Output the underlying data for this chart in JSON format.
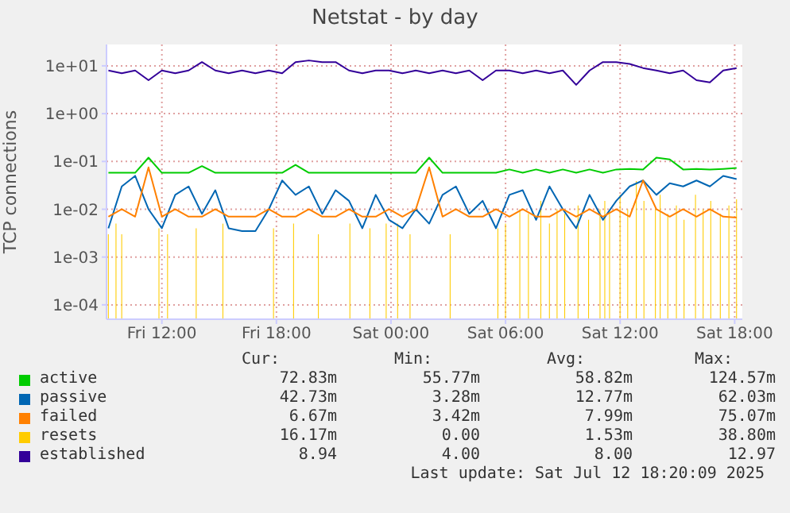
{
  "chart_data": {
    "type": "line",
    "title": "Netstat - by day",
    "ylabel": "TCP connections",
    "log": "y",
    "grid": true,
    "legend": "bottom",
    "line_style": "solid",
    "marker": "none",
    "xlim": [
      "2025-07-11T09:06",
      "2025-07-12T18:24"
    ],
    "xticks": [
      {
        "value": "2025-07-11T12:00",
        "label": "Fri 12:00"
      },
      {
        "value": "2025-07-11T18:00",
        "label": "Fri 18:00"
      },
      {
        "value": "2025-07-12T00:00",
        "label": "Sat 00:00"
      },
      {
        "value": "2025-07-12T06:00",
        "label": "Sat 06:00"
      },
      {
        "value": "2025-07-12T12:00",
        "label": "Sat 12:00"
      },
      {
        "value": "2025-07-12T18:00",
        "label": "Sat 18:00"
      }
    ],
    "ylim": [
      5e-05,
      28
    ],
    "yticks": [
      {
        "value": 0.0001,
        "label": "1e-04"
      },
      {
        "value": 0.001,
        "label": "1e-03"
      },
      {
        "value": 0.01,
        "label": "1e-02"
      },
      {
        "value": 0.1,
        "label": "1e-01"
      },
      {
        "value": 1,
        "label": "1e+00"
      },
      {
        "value": 10,
        "label": "1e+01"
      }
    ],
    "x": [
      "2025-07-11T09:12",
      "2025-07-11T09:54",
      "2025-07-11T10:36",
      "2025-07-11T11:18",
      "2025-07-11T12:00",
      "2025-07-11T12:42",
      "2025-07-11T13:24",
      "2025-07-11T14:06",
      "2025-07-11T14:48",
      "2025-07-11T15:30",
      "2025-07-11T16:12",
      "2025-07-11T16:54",
      "2025-07-11T17:36",
      "2025-07-11T18:18",
      "2025-07-11T19:00",
      "2025-07-11T19:42",
      "2025-07-11T20:24",
      "2025-07-11T21:06",
      "2025-07-11T21:48",
      "2025-07-11T22:30",
      "2025-07-11T23:12",
      "2025-07-11T23:54",
      "2025-07-12T00:36",
      "2025-07-12T01:18",
      "2025-07-12T02:00",
      "2025-07-12T02:42",
      "2025-07-12T03:24",
      "2025-07-12T04:06",
      "2025-07-12T04:48",
      "2025-07-12T05:30",
      "2025-07-12T06:12",
      "2025-07-12T06:54",
      "2025-07-12T07:36",
      "2025-07-12T08:18",
      "2025-07-12T09:00",
      "2025-07-12T09:42",
      "2025-07-12T10:24",
      "2025-07-12T11:06",
      "2025-07-12T11:48",
      "2025-07-12T12:30",
      "2025-07-12T13:12",
      "2025-07-12T13:54",
      "2025-07-12T14:36",
      "2025-07-12T15:18",
      "2025-07-12T16:00",
      "2025-07-12T16:42",
      "2025-07-12T17:24",
      "2025-07-12T18:06"
    ],
    "series": [
      {
        "name": "active",
        "color": "#00cc00",
        "values": [
          0.058,
          0.058,
          0.058,
          0.12,
          0.058,
          0.058,
          0.058,
          0.08,
          0.058,
          0.058,
          0.058,
          0.058,
          0.058,
          0.058,
          0.085,
          0.058,
          0.058,
          0.058,
          0.058,
          0.058,
          0.058,
          0.058,
          0.058,
          0.058,
          0.12,
          0.058,
          0.058,
          0.058,
          0.058,
          0.058,
          0.068,
          0.058,
          0.068,
          0.058,
          0.068,
          0.058,
          0.068,
          0.058,
          0.068,
          0.07,
          0.068,
          0.12,
          0.11,
          0.068,
          0.07,
          0.068,
          0.07,
          0.0728
        ]
      },
      {
        "name": "passive",
        "color": "#0066b3",
        "values": [
          0.004,
          0.03,
          0.05,
          0.01,
          0.004,
          0.02,
          0.03,
          0.008,
          0.025,
          0.004,
          0.0035,
          0.0035,
          0.01,
          0.04,
          0.02,
          0.03,
          0.008,
          0.025,
          0.015,
          0.004,
          0.02,
          0.006,
          0.004,
          0.01,
          0.005,
          0.02,
          0.03,
          0.008,
          0.015,
          0.004,
          0.02,
          0.025,
          0.006,
          0.03,
          0.01,
          0.004,
          0.02,
          0.006,
          0.015,
          0.03,
          0.04,
          0.02,
          0.035,
          0.03,
          0.04,
          0.03,
          0.05,
          0.0427
        ]
      },
      {
        "name": "failed",
        "color": "#ff8000",
        "values": [
          0.007,
          0.01,
          0.007,
          0.075,
          0.007,
          0.01,
          0.007,
          0.007,
          0.01,
          0.007,
          0.007,
          0.007,
          0.01,
          0.007,
          0.007,
          0.01,
          0.007,
          0.007,
          0.01,
          0.007,
          0.007,
          0.01,
          0.007,
          0.01,
          0.075,
          0.007,
          0.01,
          0.007,
          0.007,
          0.01,
          0.007,
          0.01,
          0.007,
          0.007,
          0.01,
          0.007,
          0.01,
          0.007,
          0.01,
          0.007,
          0.04,
          0.01,
          0.007,
          0.01,
          0.007,
          0.01,
          0.007,
          0.00667
        ]
      },
      {
        "name": "resets",
        "color": "#ffcc00",
        "type": "bar",
        "x": [
          "2025-07-11T09:12",
          "2025-07-11T09:36",
          "2025-07-11T09:54",
          "2025-07-11T11:51",
          "2025-07-11T12:18",
          "2025-07-11T13:48",
          "2025-07-11T15:12",
          "2025-07-11T17:51",
          "2025-07-11T18:54",
          "2025-07-11T20:12",
          "2025-07-11T21:51",
          "2025-07-11T22:54",
          "2025-07-11T23:45",
          "2025-07-12T00:21",
          "2025-07-12T01:00",
          "2025-07-12T03:06",
          "2025-07-12T05:36",
          "2025-07-12T06:00",
          "2025-07-12T06:45",
          "2025-07-12T07:12",
          "2025-07-12T07:51",
          "2025-07-12T08:18",
          "2025-07-12T08:42",
          "2025-07-12T09:06",
          "2025-07-12T09:48",
          "2025-07-12T10:21",
          "2025-07-12T10:57",
          "2025-07-12T11:12",
          "2025-07-12T11:27",
          "2025-07-12T12:00",
          "2025-07-12T12:24",
          "2025-07-12T12:51",
          "2025-07-12T13:15",
          "2025-07-12T13:51",
          "2025-07-12T14:06",
          "2025-07-12T14:30",
          "2025-07-12T14:57",
          "2025-07-12T15:21",
          "2025-07-12T15:57",
          "2025-07-12T16:21",
          "2025-07-12T16:45",
          "2025-07-12T17:15",
          "2025-07-12T17:42",
          "2025-07-12T18:06"
        ],
        "values": [
          0.003,
          0.005,
          0.003,
          0.004,
          0.003,
          0.004,
          0.005,
          0.004,
          0.005,
          0.003,
          0.005,
          0.004,
          0.005,
          0.005,
          0.003,
          0.003,
          0.004,
          0.005,
          0.01,
          0.008,
          0.015,
          0.005,
          0.01,
          0.008,
          0.012,
          0.006,
          0.01,
          0.015,
          0.008,
          0.02,
          0.01,
          0.0388,
          0.015,
          0.01,
          0.02,
          0.008,
          0.012,
          0.006,
          0.02,
          0.01,
          0.015,
          0.008,
          0.012,
          0.01617
        ]
      },
      {
        "name": "established",
        "color": "#330099",
        "values": [
          8,
          7,
          8,
          5,
          8,
          7,
          8,
          12,
          8,
          7,
          8,
          7,
          8,
          7,
          12,
          12.97,
          12,
          12,
          8,
          7,
          8,
          8,
          7,
          8,
          7,
          8,
          7,
          8,
          5,
          8,
          8,
          7,
          8,
          7,
          8,
          4,
          8,
          12,
          12,
          11,
          9,
          8,
          7,
          8,
          5,
          4.5,
          8,
          8.94
        ]
      }
    ],
    "annotations": [
      "Cur:",
      "Min:",
      "Avg:",
      "Max:",
      "72.83m",
      "55.77m",
      "58.82m",
      "124.57m",
      "42.73m",
      "3.28m",
      "12.77m",
      "62.03m",
      "6.67m",
      "3.42m",
      "7.99m",
      "75.07m",
      "16.17m",
      "0.00",
      "1.53m",
      "38.80m",
      "8.94",
      "4.00",
      "8.00",
      "12.97",
      "Last update: Sat Jul 12 18:20:09 2025"
    ]
  }
}
